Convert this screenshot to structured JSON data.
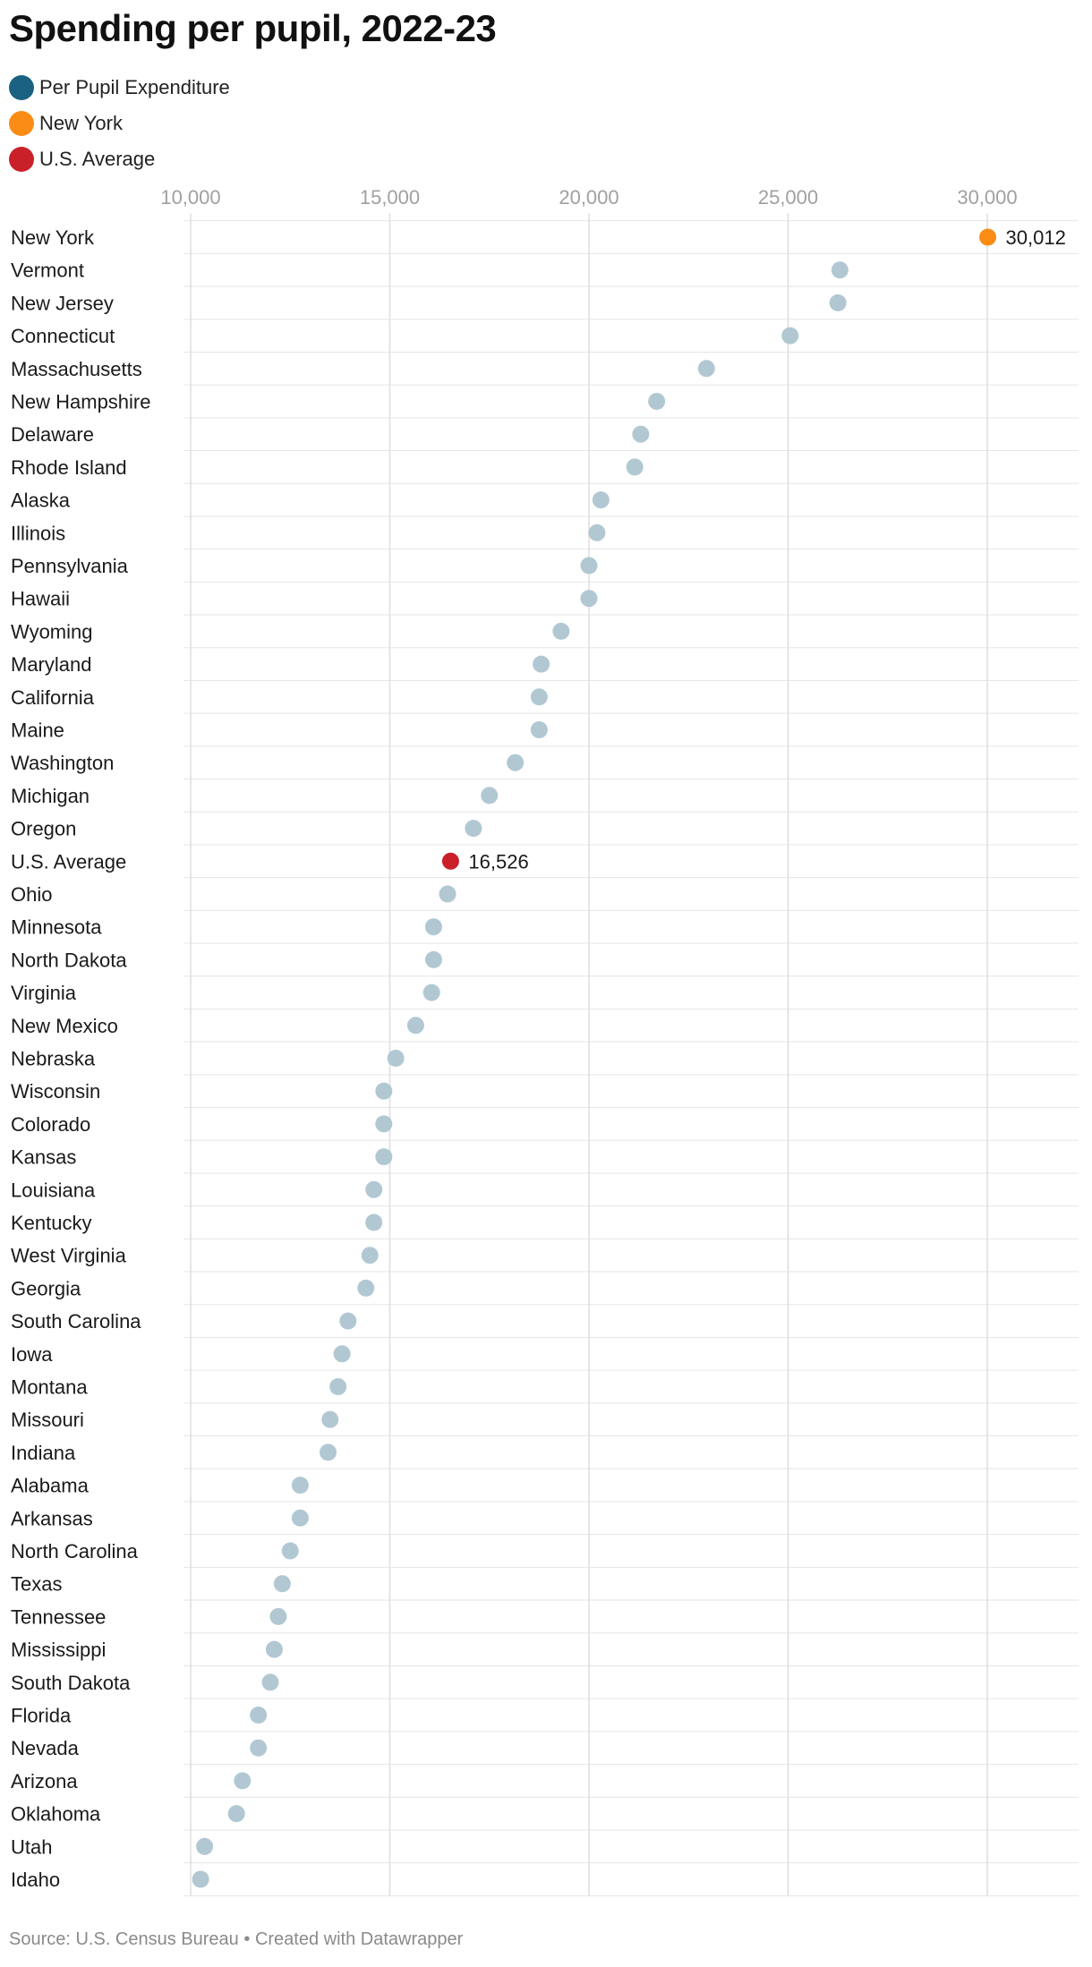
{
  "title": "Spending per pupil, 2022-23",
  "legend": [
    {
      "label": "Per Pupil Expenditure",
      "color": "#1b6282"
    },
    {
      "label": "New York",
      "color": "#fa8c16"
    },
    {
      "label": "U.S. Average",
      "color": "#c9202a"
    }
  ],
  "footer": {
    "source": "Source: U.S. Census Bureau",
    "separator": "•",
    "credit": "Created with Datawrapper"
  },
  "chart_data": {
    "type": "scatter",
    "orientation": "dot-plot-horizontal",
    "title": "Spending per pupil, 2022-23",
    "xlabel": "",
    "ylabel": "",
    "xlim": [
      9500,
      32200
    ],
    "xticks": [
      10000,
      15000,
      20000,
      25000,
      30000
    ],
    "xtick_labels": [
      "10,000",
      "15,000",
      "20,000",
      "25,000",
      "30,000"
    ],
    "grid": true,
    "series_colors": {
      "default": "#b1c8d3",
      "highlight_ny": "#fa8c16",
      "highlight_avg": "#c9202a"
    },
    "points": [
      {
        "label": "New York",
        "value": 30012,
        "series": "highlight_ny",
        "value_label": "30,012"
      },
      {
        "label": "Vermont",
        "value": 26300,
        "series": "default"
      },
      {
        "label": "New Jersey",
        "value": 26250,
        "series": "default"
      },
      {
        "label": "Connecticut",
        "value": 25050,
        "series": "default"
      },
      {
        "label": "Massachusetts",
        "value": 22950,
        "series": "default"
      },
      {
        "label": "New Hampshire",
        "value": 21700,
        "series": "default"
      },
      {
        "label": "Delaware",
        "value": 21300,
        "series": "default"
      },
      {
        "label": "Rhode Island",
        "value": 21150,
        "series": "default"
      },
      {
        "label": "Alaska",
        "value": 20300,
        "series": "default"
      },
      {
        "label": "Illinois",
        "value": 20200,
        "series": "default"
      },
      {
        "label": "Pennsylvania",
        "value": 20000,
        "series": "default"
      },
      {
        "label": "Hawaii",
        "value": 20000,
        "series": "default"
      },
      {
        "label": "Wyoming",
        "value": 19300,
        "series": "default"
      },
      {
        "label": "Maryland",
        "value": 18800,
        "series": "default"
      },
      {
        "label": "California",
        "value": 18750,
        "series": "default"
      },
      {
        "label": "Maine",
        "value": 18750,
        "series": "default"
      },
      {
        "label": "Washington",
        "value": 18150,
        "series": "default"
      },
      {
        "label": "Michigan",
        "value": 17500,
        "series": "default"
      },
      {
        "label": "Oregon",
        "value": 17100,
        "series": "default"
      },
      {
        "label": "U.S. Average",
        "value": 16526,
        "series": "highlight_avg",
        "value_label": "16,526"
      },
      {
        "label": "Ohio",
        "value": 16450,
        "series": "default"
      },
      {
        "label": "Minnesota",
        "value": 16100,
        "series": "default"
      },
      {
        "label": "North Dakota",
        "value": 16100,
        "series": "default"
      },
      {
        "label": "Virginia",
        "value": 16050,
        "series": "default"
      },
      {
        "label": "New Mexico",
        "value": 15650,
        "series": "default"
      },
      {
        "label": "Nebraska",
        "value": 15150,
        "series": "default"
      },
      {
        "label": "Wisconsin",
        "value": 14850,
        "series": "default"
      },
      {
        "label": "Colorado",
        "value": 14850,
        "series": "default"
      },
      {
        "label": "Kansas",
        "value": 14850,
        "series": "default"
      },
      {
        "label": "Louisiana",
        "value": 14600,
        "series": "default"
      },
      {
        "label": "Kentucky",
        "value": 14600,
        "series": "default"
      },
      {
        "label": "West Virginia",
        "value": 14500,
        "series": "default"
      },
      {
        "label": "Georgia",
        "value": 14400,
        "series": "default"
      },
      {
        "label": "South Carolina",
        "value": 13950,
        "series": "default"
      },
      {
        "label": "Iowa",
        "value": 13800,
        "series": "default"
      },
      {
        "label": "Montana",
        "value": 13700,
        "series": "default"
      },
      {
        "label": "Missouri",
        "value": 13500,
        "series": "default"
      },
      {
        "label": "Indiana",
        "value": 13450,
        "series": "default"
      },
      {
        "label": "Alabama",
        "value": 12750,
        "series": "default"
      },
      {
        "label": "Arkansas",
        "value": 12750,
        "series": "default"
      },
      {
        "label": "North Carolina",
        "value": 12500,
        "series": "default"
      },
      {
        "label": "Texas",
        "value": 12300,
        "series": "default"
      },
      {
        "label": "Tennessee",
        "value": 12200,
        "series": "default"
      },
      {
        "label": "Mississippi",
        "value": 12100,
        "series": "default"
      },
      {
        "label": "South Dakota",
        "value": 12000,
        "series": "default"
      },
      {
        "label": "Florida",
        "value": 11700,
        "series": "default"
      },
      {
        "label": "Nevada",
        "value": 11700,
        "series": "default"
      },
      {
        "label": "Arizona",
        "value": 11300,
        "series": "default"
      },
      {
        "label": "Oklahoma",
        "value": 11150,
        "series": "default"
      },
      {
        "label": "Utah",
        "value": 10350,
        "series": "default"
      },
      {
        "label": "Idaho",
        "value": 10250,
        "series": "default"
      }
    ]
  }
}
